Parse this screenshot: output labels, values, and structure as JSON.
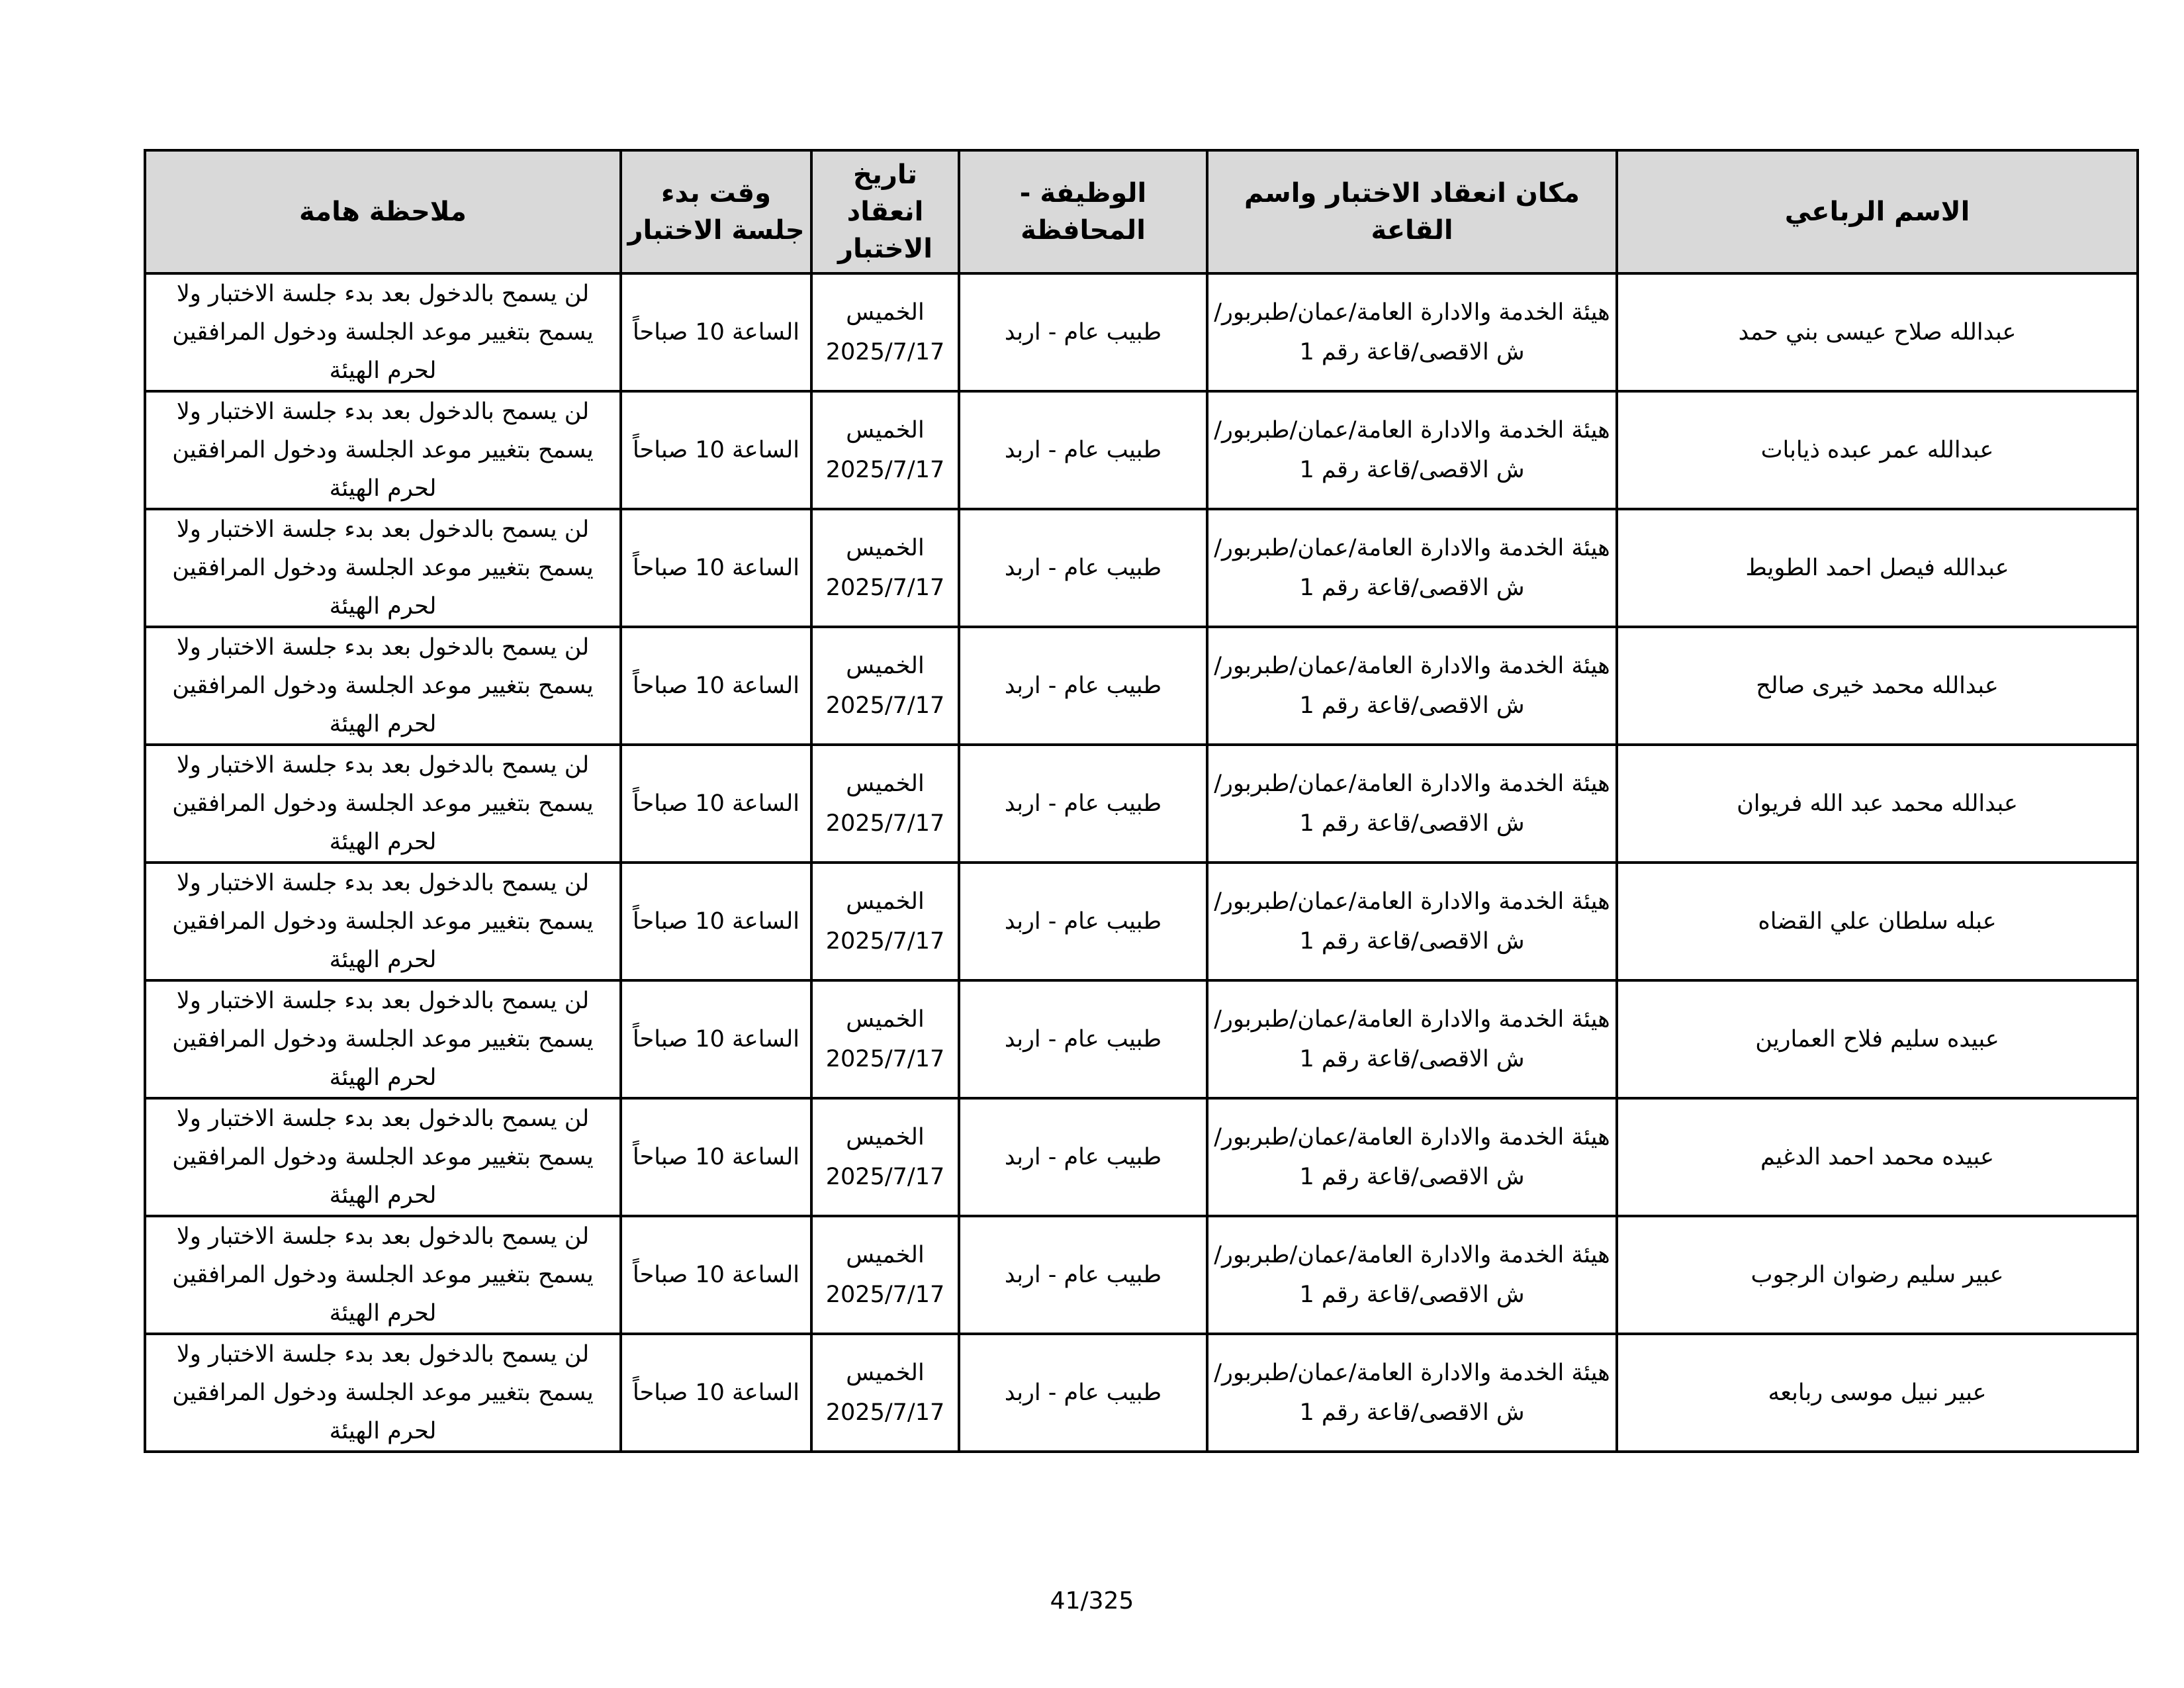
{
  "table": {
    "headers": {
      "name": "الاسم الرباعي",
      "place": "مكان انعقاد الاختبار واسم القاعة",
      "job": "الوظيفة - المحافظة",
      "date": "تاريخ انعقاد الاختبار",
      "time": "وقت بدء جلسة الاختبار",
      "note": "ملاحظة هامة"
    },
    "rows": [
      {
        "name": "عبدالله صلاح عيسى بني حمد",
        "place": "هيئة الخدمة والادارة العامة/عمان/طبربور/ش الاقصى/قاعة رقم 1",
        "job": "طبيب عام - اربد",
        "date": "الخميس 2025/7/17",
        "time": "الساعة 10 صباحاً",
        "note": "لن يسمح بالدخول بعد بدء جلسة الاختبار ولا يسمح بتغيير موعد الجلسة ودخول المرافقين لحرم الهيئة"
      },
      {
        "name": "عبدالله عمر عبده ذيابات",
        "place": "هيئة الخدمة والادارة العامة/عمان/طبربور/ش الاقصى/قاعة رقم 1",
        "job": "طبيب عام - اربد",
        "date": "الخميس 2025/7/17",
        "time": "الساعة 10 صباحاً",
        "note": "لن يسمح بالدخول بعد بدء جلسة الاختبار ولا يسمح بتغيير موعد الجلسة ودخول المرافقين لحرم الهيئة"
      },
      {
        "name": "عبدالله فيصل احمد الطويط",
        "place": "هيئة الخدمة والادارة العامة/عمان/طبربور/ش الاقصى/قاعة رقم 1",
        "job": "طبيب عام - اربد",
        "date": "الخميس 2025/7/17",
        "time": "الساعة 10 صباحاً",
        "note": "لن يسمح بالدخول بعد بدء جلسة الاختبار ولا يسمح بتغيير موعد الجلسة ودخول المرافقين لحرم الهيئة"
      },
      {
        "name": "عبدالله محمد خيرى صالح",
        "place": "هيئة الخدمة والادارة العامة/عمان/طبربور/ش الاقصى/قاعة رقم 1",
        "job": "طبيب عام - اربد",
        "date": "الخميس 2025/7/17",
        "time": "الساعة 10 صباحاً",
        "note": "لن يسمح بالدخول بعد بدء جلسة الاختبار ولا يسمح بتغيير موعد الجلسة ودخول المرافقين لحرم الهيئة"
      },
      {
        "name": "عبدالله محمد عبد الله فريوان",
        "place": "هيئة الخدمة والادارة العامة/عمان/طبربور/ش الاقصى/قاعة رقم 1",
        "job": "طبيب عام - اربد",
        "date": "الخميس 2025/7/17",
        "time": "الساعة 10 صباحاً",
        "note": "لن يسمح بالدخول بعد بدء جلسة الاختبار ولا يسمح بتغيير موعد الجلسة ودخول المرافقين لحرم الهيئة"
      },
      {
        "name": "عبله سلطان علي القضاه",
        "place": "هيئة الخدمة والادارة العامة/عمان/طبربور/ش الاقصى/قاعة رقم 1",
        "job": "طبيب عام - اربد",
        "date": "الخميس 2025/7/17",
        "time": "الساعة 10 صباحاً",
        "note": "لن يسمح بالدخول بعد بدء جلسة الاختبار ولا يسمح بتغيير موعد الجلسة ودخول المرافقين لحرم الهيئة"
      },
      {
        "name": "عبيده سليم فلاح العمارين",
        "place": "هيئة الخدمة والادارة العامة/عمان/طبربور/ش الاقصى/قاعة رقم 1",
        "job": "طبيب عام - اربد",
        "date": "الخميس 2025/7/17",
        "time": "الساعة 10 صباحاً",
        "note": "لن يسمح بالدخول بعد بدء جلسة الاختبار ولا يسمح بتغيير موعد الجلسة ودخول المرافقين لحرم الهيئة"
      },
      {
        "name": "عبيده محمد احمد الدغيم",
        "place": "هيئة الخدمة والادارة العامة/عمان/طبربور/ش الاقصى/قاعة رقم 1",
        "job": "طبيب عام - اربد",
        "date": "الخميس 2025/7/17",
        "time": "الساعة 10 صباحاً",
        "note": "لن يسمح بالدخول بعد بدء جلسة الاختبار ولا يسمح بتغيير موعد الجلسة ودخول المرافقين لحرم الهيئة"
      },
      {
        "name": "عبير سليم رضوان الرجوب",
        "place": "هيئة الخدمة والادارة العامة/عمان/طبربور/ش الاقصى/قاعة رقم 1",
        "job": "طبيب عام - اربد",
        "date": "الخميس 2025/7/17",
        "time": "الساعة 10 صباحاً",
        "note": "لن يسمح بالدخول بعد بدء جلسة الاختبار ولا يسمح بتغيير موعد الجلسة ودخول المرافقين لحرم الهيئة"
      },
      {
        "name": "عبير نبيل موسى ربابعه",
        "place": "هيئة الخدمة والادارة العامة/عمان/طبربور/ش الاقصى/قاعة رقم 1",
        "job": "طبيب عام - اربد",
        "date": "الخميس 2025/7/17",
        "time": "الساعة 10 صباحاً",
        "note": "لن يسمح بالدخول بعد بدء جلسة الاختبار ولا يسمح بتغيير موعد الجلسة ودخول المرافقين لحرم الهيئة"
      }
    ]
  },
  "footer": {
    "page_number": "41/325"
  },
  "colors": {
    "header_bg": "#d9d9d9",
    "border": "#000000"
  }
}
